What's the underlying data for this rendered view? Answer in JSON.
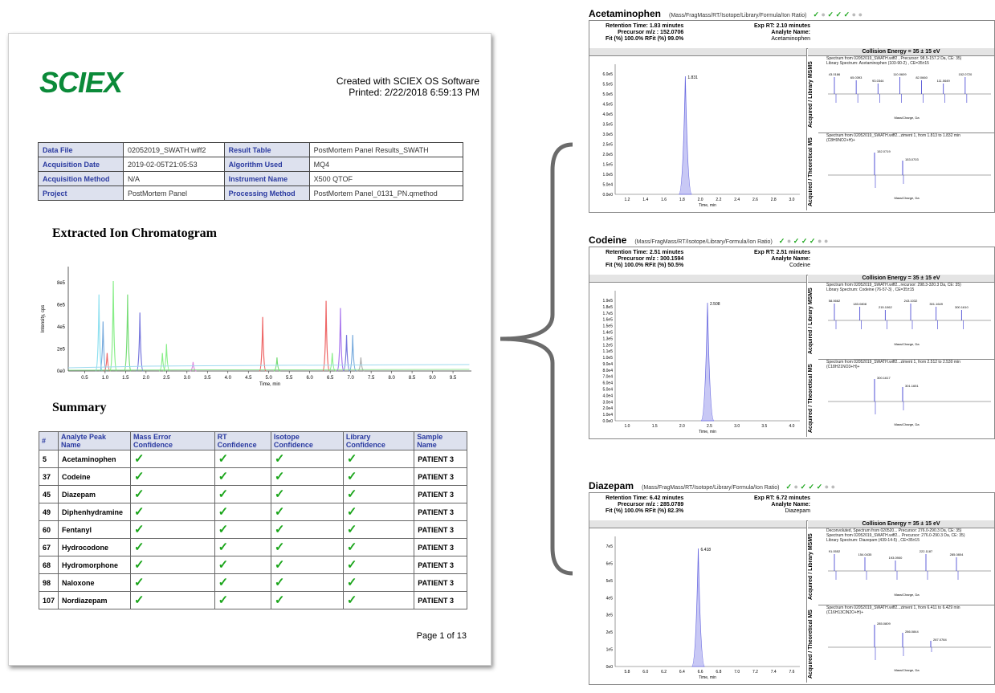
{
  "report": {
    "logo": "SCIEX",
    "created_line1": "Created with SCIEX OS Software",
    "created_line2": "Printed:  2/22/2018 6:59:13 PM",
    "meta_rows": [
      {
        "k1": "Data File",
        "v1": "02052019_SWATH.wiff2",
        "k2": "Result Table",
        "v2": "PostMortem Panel Results_SWATH"
      },
      {
        "k1": "Acquisition Date",
        "v1": "2019-02-05T21:05:53",
        "k2": "Algorithm Used",
        "v2": "MQ4"
      },
      {
        "k1": "Acquisition Method",
        "v1": "N/A",
        "k2": "Instrument Name",
        "v2": "X500 QTOF"
      },
      {
        "k1": "Project",
        "v1": "PostMortem Panel",
        "k2": "Processing Method",
        "v2": "PostMortem Panel_0131_PN.qmethod"
      }
    ],
    "eic_title": "Extracted Ion Chromatogram",
    "eic_ylabel": "Intensity, cps",
    "eic_xlabel": "Time, min",
    "eic_yticks": [
      "8e5",
      "6e5",
      "4e5",
      "2e5",
      "0e0"
    ],
    "eic_xticks": [
      "0.5",
      "1.0",
      "1.5",
      "2.0",
      "2.5",
      "3.0",
      "3.5",
      "4.0",
      "4.5",
      "5.0",
      "5.5",
      "6.0",
      "6.5",
      "7.0",
      "7.5",
      "8.0",
      "8.5",
      "9.0",
      "9.5"
    ],
    "summary_title": "Summary",
    "summary_headers": [
      "#",
      "Analyte Peak Name",
      "Mass Error Confidence",
      "RT Confidence",
      "Isotope Confidence",
      "Library Confidence",
      "Sample Name"
    ],
    "summary_rows": [
      {
        "n": "5",
        "name": "Acetaminophen",
        "sample": "PATIENT 3"
      },
      {
        "n": "37",
        "name": "Codeine",
        "sample": "PATIENT 3"
      },
      {
        "n": "45",
        "name": "Diazepam",
        "sample": "PATIENT 3"
      },
      {
        "n": "49",
        "name": "Diphenhydramine",
        "sample": "PATIENT 3"
      },
      {
        "n": "60",
        "name": "Fentanyl",
        "sample": "PATIENT 3"
      },
      {
        "n": "67",
        "name": "Hydrocodone",
        "sample": "PATIENT 3"
      },
      {
        "n": "68",
        "name": "Hydromorphone",
        "sample": "PATIENT 3"
      },
      {
        "n": "98",
        "name": "Naloxone",
        "sample": "PATIENT 3"
      },
      {
        "n": "107",
        "name": "Nordiazepam",
        "sample": "PATIENT 3"
      }
    ],
    "check_glyph": "✓",
    "page_label": "Page 1 of 13"
  },
  "panels": [
    {
      "name": "Acetaminophen",
      "subtitle": "(Mass/FragMass/RT/Isotope/Library/Formula/Ion Ratio)",
      "status": [
        "ok",
        "no",
        "ok",
        "ok",
        "ok",
        "no",
        "no"
      ],
      "rt": "Retention Time: 1.83 minutes",
      "mz": "Precursor m/z : 152.0706",
      "fit": "Fit (%) 100.0%   RFit (%) 99.0%",
      "exp_rt": "Exp RT: 2.10 minutes",
      "analyte_label": "Analyte Name:",
      "analyte": "Acetaminophen",
      "collision": "Collision Energy = 35 ± 15 eV",
      "peak_label": "1.831",
      "xlabel": "Time, min",
      "yticks": [
        "6.0e5",
        "5.5e5",
        "5.0e5",
        "4.5e5",
        "4.0e5",
        "3.5e5",
        "3.0e5",
        "2.5e5",
        "2.0e5",
        "1.5e5",
        "1.0e5",
        "5.0e4",
        "0.0e0"
      ],
      "xticks": [
        "1.2",
        "1.4",
        "1.6",
        "1.8",
        "2.0",
        "2.2",
        "2.4",
        "2.6",
        "2.8",
        "3.0"
      ],
      "lib_label": "Acquired / Library MSMS",
      "theo_label": "Acquired / Theoretical MS",
      "lib_legend": [
        "Spectrum from 02052019_SWATH.wiff2 , Precursor: 98.5-157.2 Da, CE: 35)",
        "Library Spectrum: Acetaminophen (103-90-2) , CE=35±15"
      ],
      "theo_legend": [
        "Spectrum from 02052019_SWATH.wiff2...ziment 1, from 1.813 to 1.832 min",
        "(C8H9NO2+H)+"
      ],
      "peaks_lib": [
        "43.0186",
        "65.0393",
        "93.0344",
        "110.0609",
        "82.0660",
        "111.0649",
        "152.0720"
      ],
      "peaks_theo": [
        "152.0719",
        "153.0703"
      ],
      "mass_xlabel": "Mass/Charge, Da"
    },
    {
      "name": "Codeine",
      "subtitle": "(Mass/FragMass/RT/Isotope/Library/Formula/Ion Ratio)",
      "status": [
        "ok",
        "no",
        "ok",
        "ok",
        "ok",
        "no",
        "no"
      ],
      "rt": "Retention Time: 2.51 minutes",
      "mz": "Precursor m/z : 300.1594",
      "fit": "Fit (%) 100.0%   RFit (%) 50.5%",
      "exp_rt": "Exp RT: 2.51 minutes",
      "analyte_label": "Analyte Name:",
      "analyte": "Codeine",
      "collision": "Collision Energy = 35 ± 15 eV",
      "peak_label": "2.508",
      "xlabel": "Time, min",
      "yticks": [
        "1.9e5",
        "1.8e5",
        "1.7e5",
        "1.6e5",
        "1.5e5",
        "1.4e5",
        "1.3e5",
        "1.2e5",
        "1.1e5",
        "1.0e5",
        "9.0e4",
        "8.0e4",
        "7.0e4",
        "6.0e4",
        "5.0e4",
        "4.0e4",
        "3.0e4",
        "2.0e4",
        "1.0e4",
        "0.0e0"
      ],
      "xticks": [
        "1.0",
        "1.5",
        "2.0",
        "2.5",
        "3.0",
        "3.5",
        "4.0"
      ],
      "lib_label": "Acquired / Library MSMS",
      "theo_label": "Acquired / Theoretical MS",
      "lib_legend": [
        "Spectrum from 02052019_SWATH.wiff2...recursor: 298.3-320.3 Da, CE: 35)",
        "Library Spectrum: Codeine (76-57-3) , CE=35±15"
      ],
      "theo_legend": [
        "Spectrum from 02052019_SWATH.wiff2...ziment 1, from 2.512 to 2.530 min",
        "(C18H21NO3+H)+"
      ],
      "peaks_lib": [
        "58.0662",
        "183.0808",
        "215.1062",
        "243.1032",
        "301.1649",
        "300.1610"
      ],
      "peaks_theo": [
        "300.1617",
        "301.1651"
      ],
      "mass_xlabel": "Mass/Charge, Da"
    },
    {
      "name": "Diazepam",
      "subtitle": "(Mass/FragMass/RT/Isotope/Library/Formula/Ion Ratio)",
      "status": [
        "ok",
        "no",
        "ok",
        "ok",
        "ok",
        "no",
        "no"
      ],
      "rt": "Retention Time: 6.42 minutes",
      "mz": "Precursor m/z : 285.0789",
      "fit": "Fit (%) 100.0%   RFit (%) 82.3%",
      "exp_rt": "Exp RT: 6.72 minutes",
      "analyte_label": "Analyte Name:",
      "analyte": "Diazepam",
      "collision": "Collision Energy = 35 ± 15 eV",
      "peak_label": "6.418",
      "xlabel": "Time, min",
      "yticks": [
        "7e5",
        "6e5",
        "5e5",
        "4e5",
        "3e5",
        "2e5",
        "1e5",
        "0e0"
      ],
      "xticks": [
        "5.8",
        "6.0",
        "6.2",
        "6.4",
        "6.6",
        "6.8",
        "7.0",
        "7.2",
        "7.4",
        "7.6"
      ],
      "lib_label": "Acquired / Library MSMS",
      "theo_label": "Acquired / Theoretical MS",
      "lib_legend": [
        "Deconvoluted, Spectrum from 020520... Precursor: 276.0-290.3 Da, CE: 35)",
        "Spectrum from 02052019_SWATH.wiff2... Precursor: 276.0-290.3 Da, CE: 35)",
        "Library Spectrum: Diazepam (439-14-5) , CE=35±15"
      ],
      "theo_legend": [
        "Spectrum from 02052019_SWATH.wiff2...ziment 1, from 6.411 to 6.429 min",
        "(C16H13ClN2O+H)+"
      ],
      "peaks_lib": [
        "91.0552",
        "154.0435",
        "193.0900",
        "222.1187",
        "285.0804"
      ],
      "peaks_theo": [
        "285.0809",
        "286.0844",
        "287.0784"
      ],
      "mass_xlabel": "Mass/Charge, Da"
    }
  ]
}
